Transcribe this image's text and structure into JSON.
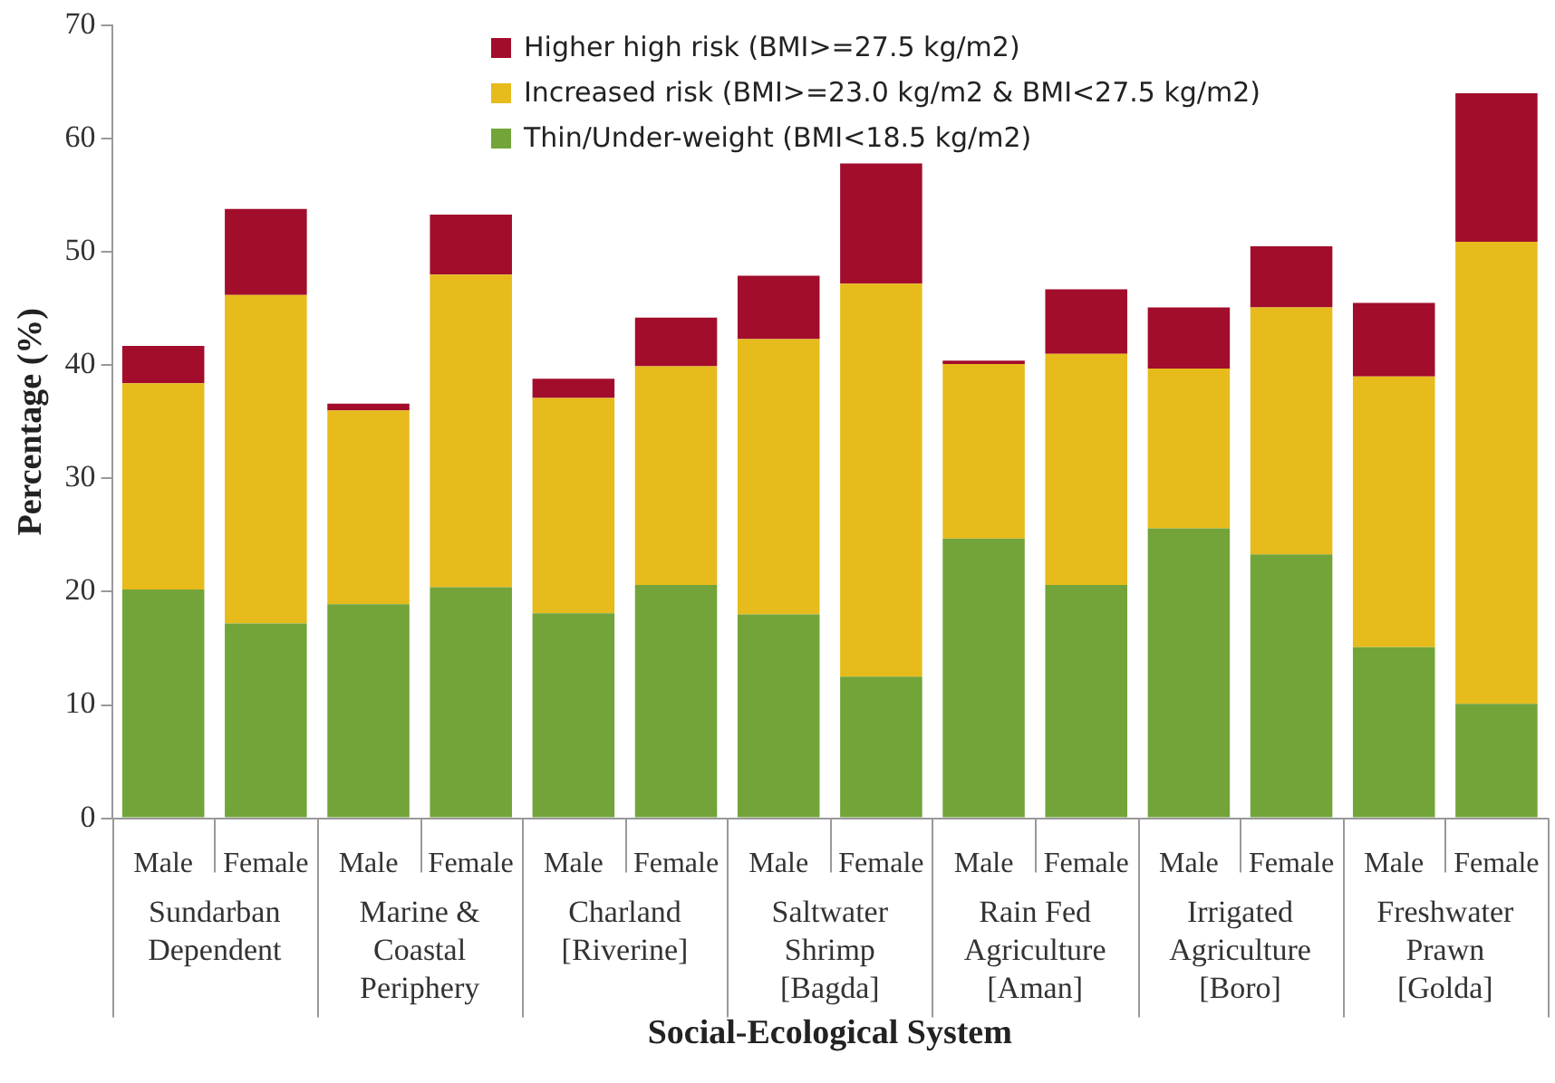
{
  "chart_data": {
    "type": "bar",
    "stacked": true,
    "xlabel": "Social-Ecological System",
    "ylabel": "Percentage (%)",
    "categories": [
      "Male",
      "Female",
      "Male",
      "Female",
      "Male",
      "Female",
      "Male",
      "Female",
      "Male",
      "Female",
      "Male",
      "Female",
      "Male",
      "Female"
    ],
    "series": [
      {
        "name": "Thin/Under-weight (BMI<18.5 kg/m2)",
        "color": "#72a43a",
        "values": [
          20.2,
          17.2,
          18.9,
          20.4,
          18.1,
          20.6,
          18.0,
          12.5,
          24.7,
          20.6,
          25.6,
          23.3,
          15.1,
          10.1
        ]
      },
      {
        "name": "Increased risk (BMI>=23.0 kg/m2 & BMI<27.5 kg/m2)",
        "color": "#e6bb1b",
        "values": [
          18.2,
          29.0,
          17.1,
          27.6,
          19.0,
          19.3,
          24.3,
          34.7,
          15.4,
          20.4,
          14.1,
          21.8,
          23.9,
          40.8
        ]
      },
      {
        "name": "Higher high risk (BMI>=27.5 kg/m2)",
        "color": "#a20d2b",
        "values": [
          3.3,
          7.6,
          0.6,
          5.3,
          1.7,
          4.3,
          5.6,
          10.6,
          0.3,
          5.7,
          5.4,
          5.4,
          6.5,
          13.1
        ]
      }
    ],
    "ylim": [
      0,
      70
    ],
    "yticks": [
      0,
      10,
      20,
      30,
      40,
      50,
      60,
      70
    ],
    "grid": false,
    "legend": "top right",
    "annotations": [
      "Sundarban\nDependent",
      "Marine &\nCoastal\nPeriphery",
      "Charland\n[Riverine]",
      "Saltwater\nShrimp\n[Bagda]",
      "Rain Fed\nAgriculture\n[Aman]",
      "Irrigated\nAgriculture\n[Boro]",
      "Freshwater\nPrawn\n[Golda]"
    ]
  }
}
